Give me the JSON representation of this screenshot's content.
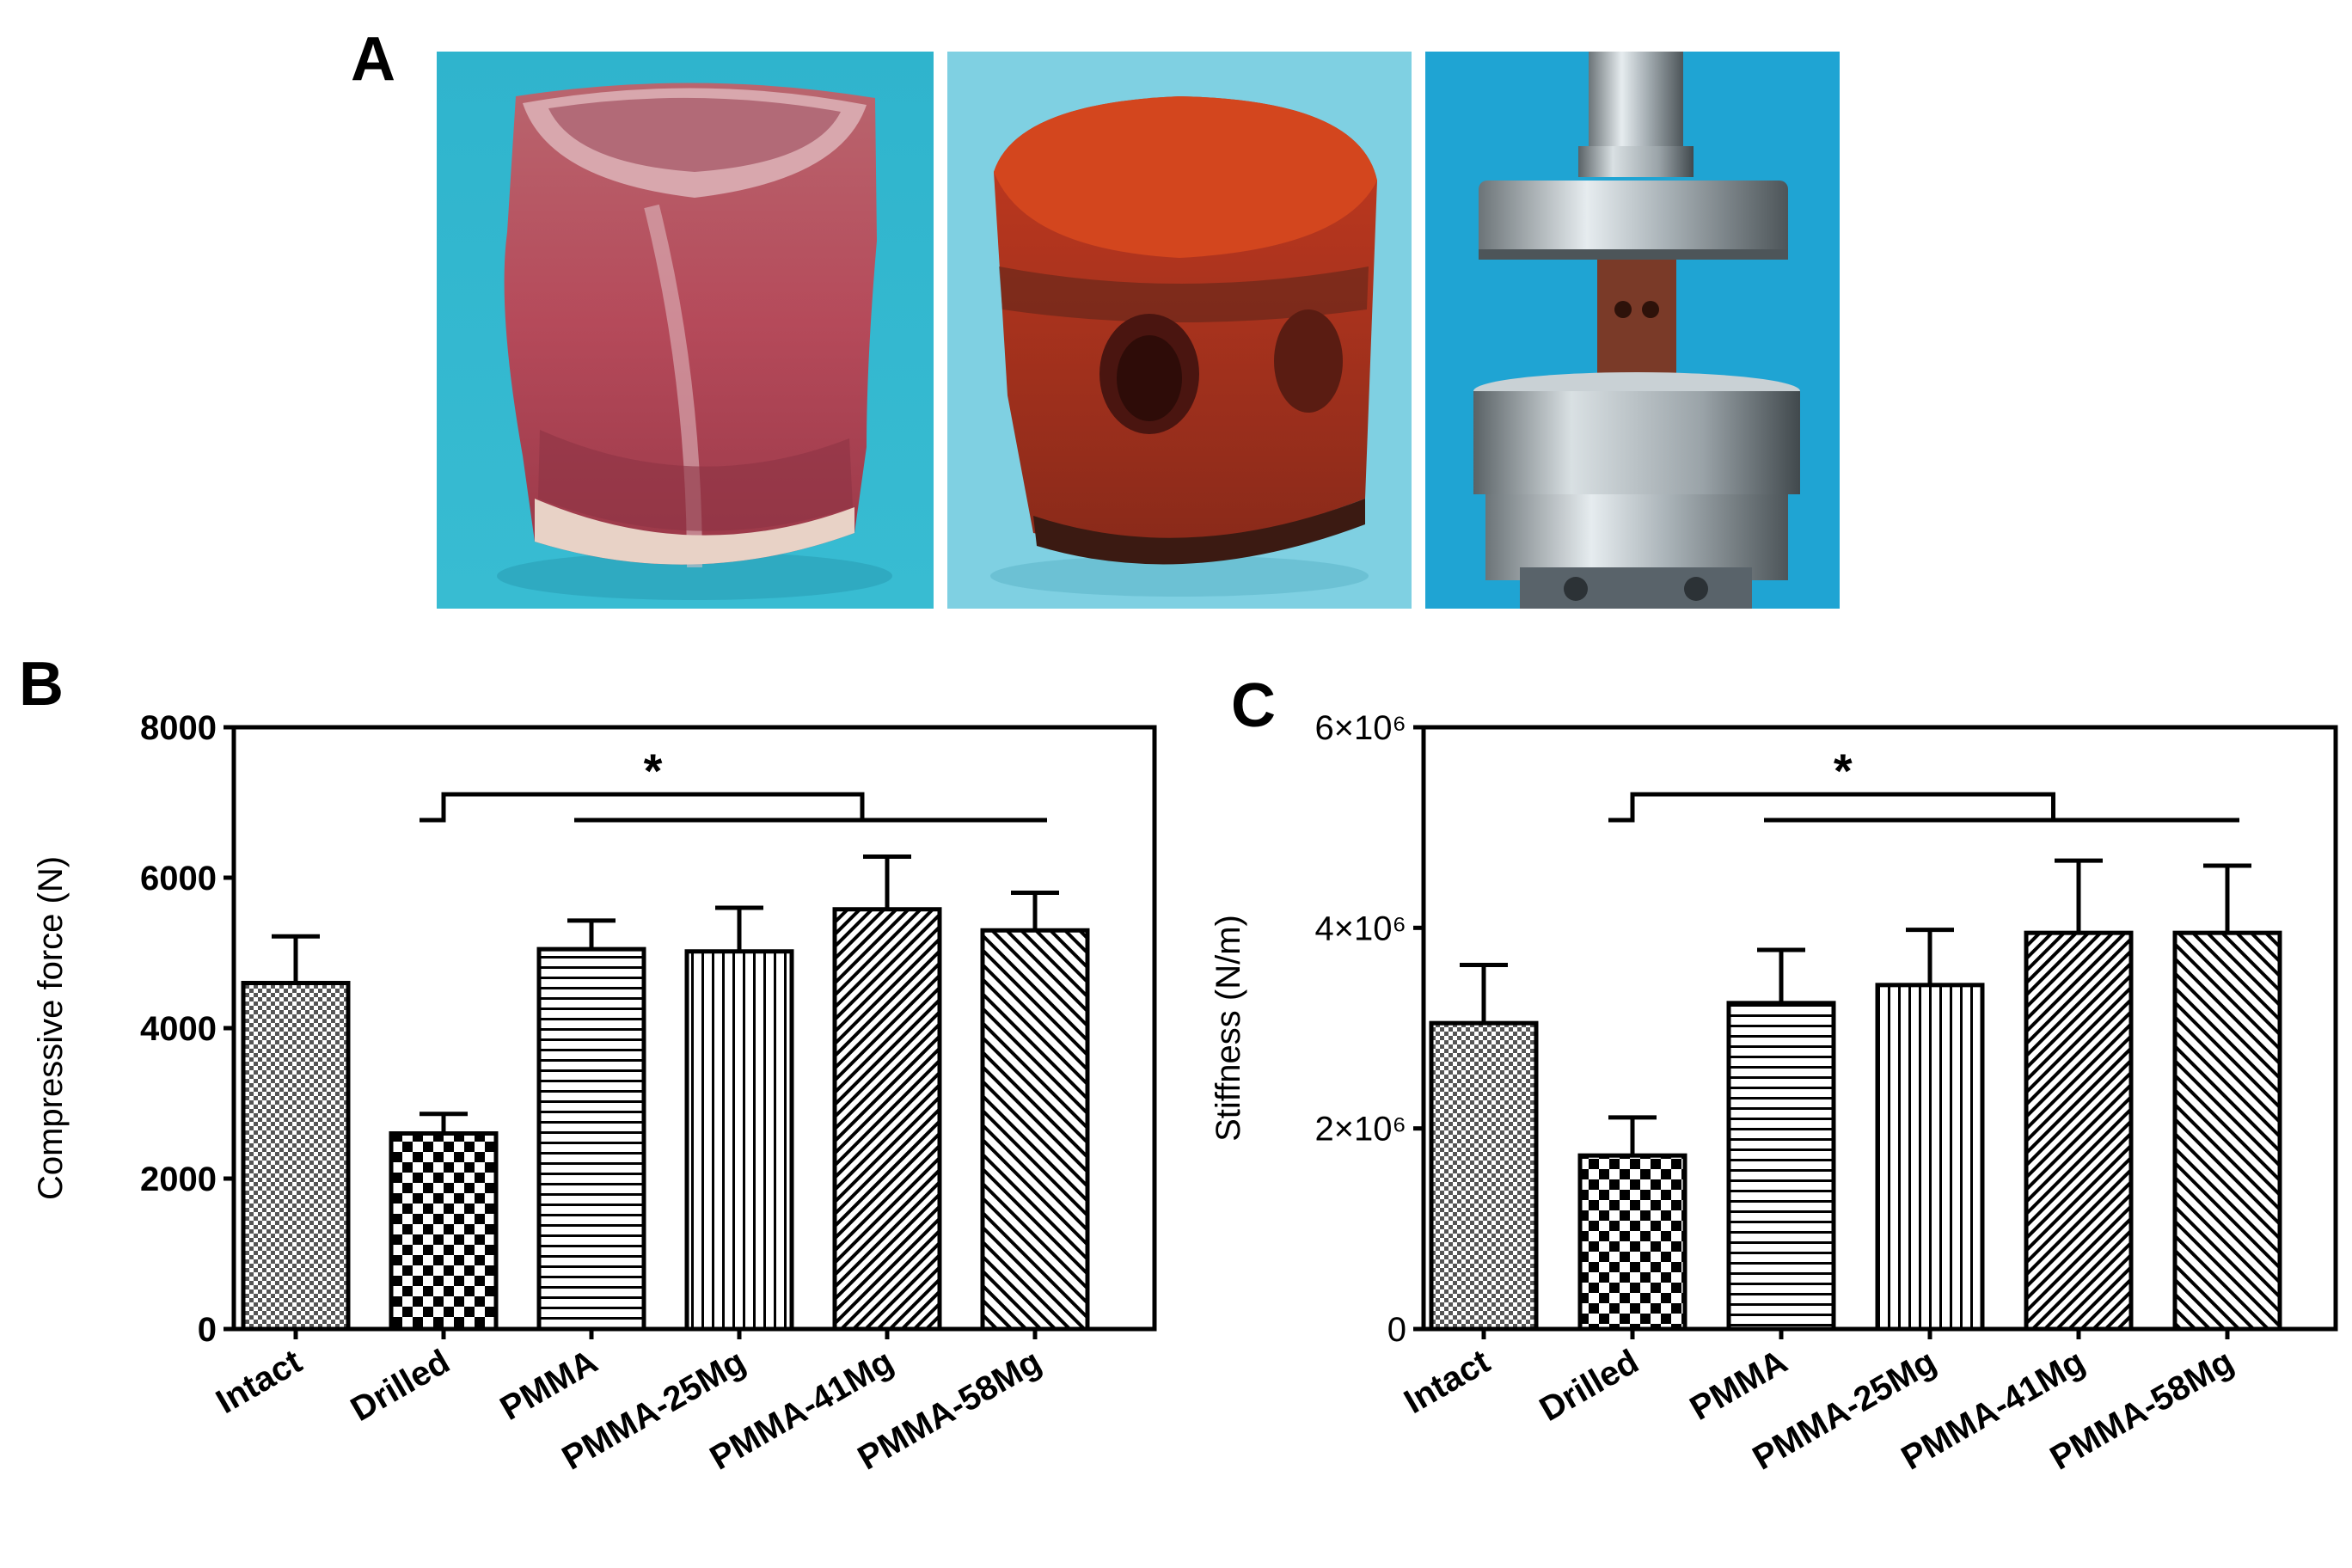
{
  "panels": {
    "a": "A",
    "b": "B",
    "c": "C"
  },
  "photos": [
    {
      "name": "intact-vertebra",
      "bg": "#35b7d0"
    },
    {
      "name": "drilled-vertebra",
      "bg": "#7ccfe0"
    },
    {
      "name": "compression-test",
      "bg": "#1aa2d2"
    }
  ],
  "chart_data": [
    {
      "type": "bar",
      "panel": "B",
      "title": "",
      "xlabel": "",
      "ylabel": "Compressive force (N)",
      "ylim": [
        0,
        8000
      ],
      "yticks": [
        0,
        2000,
        4000,
        6000,
        8000
      ],
      "ytick_labels": [
        "0",
        "2000",
        "4000",
        "6000",
        "8000"
      ],
      "categories": [
        "Intact",
        "Drilled",
        "PMMA",
        "PMMA-25Mg",
        "PMMA-41Mg",
        "PMMA-58Mg"
      ],
      "values": [
        4600,
        2600,
        5050,
        5020,
        5580,
        5300
      ],
      "errors": [
        620,
        260,
        380,
        580,
        700,
        500
      ],
      "patterns": [
        "fine-check",
        "check",
        "horizontal",
        "vertical",
        "diag-fine",
        "diag-back"
      ],
      "significance": {
        "label": "*",
        "from": "Drilled",
        "to": [
          "PMMA",
          "PMMA-25Mg",
          "PMMA-41Mg",
          "PMMA-58Mg"
        ]
      }
    },
    {
      "type": "bar",
      "panel": "C",
      "title": "",
      "xlabel": "",
      "ylabel": "Stiffness (N/m)",
      "ylim": [
        0,
        6000000
      ],
      "yticks": [
        0,
        2000000,
        4000000,
        6000000
      ],
      "ytick_labels": [
        "0",
        "2×10⁶",
        "4×10⁶",
        "6×10⁶"
      ],
      "categories": [
        "Intact",
        "Drilled",
        "PMMA",
        "PMMA-25Mg",
        "PMMA-41Mg",
        "PMMA-58Mg"
      ],
      "values": [
        3050000,
        1730000,
        3250000,
        3430000,
        3950000,
        3950000
      ],
      "errors": [
        580000,
        380000,
        530000,
        550000,
        720000,
        670000
      ],
      "patterns": [
        "fine-check",
        "check",
        "horizontal",
        "vertical",
        "diag-fine",
        "diag-back"
      ],
      "significance": {
        "label": "*",
        "from": "Drilled",
        "to": [
          "PMMA",
          "PMMA-25Mg",
          "PMMA-41Mg",
          "PMMA-58Mg"
        ]
      }
    }
  ]
}
